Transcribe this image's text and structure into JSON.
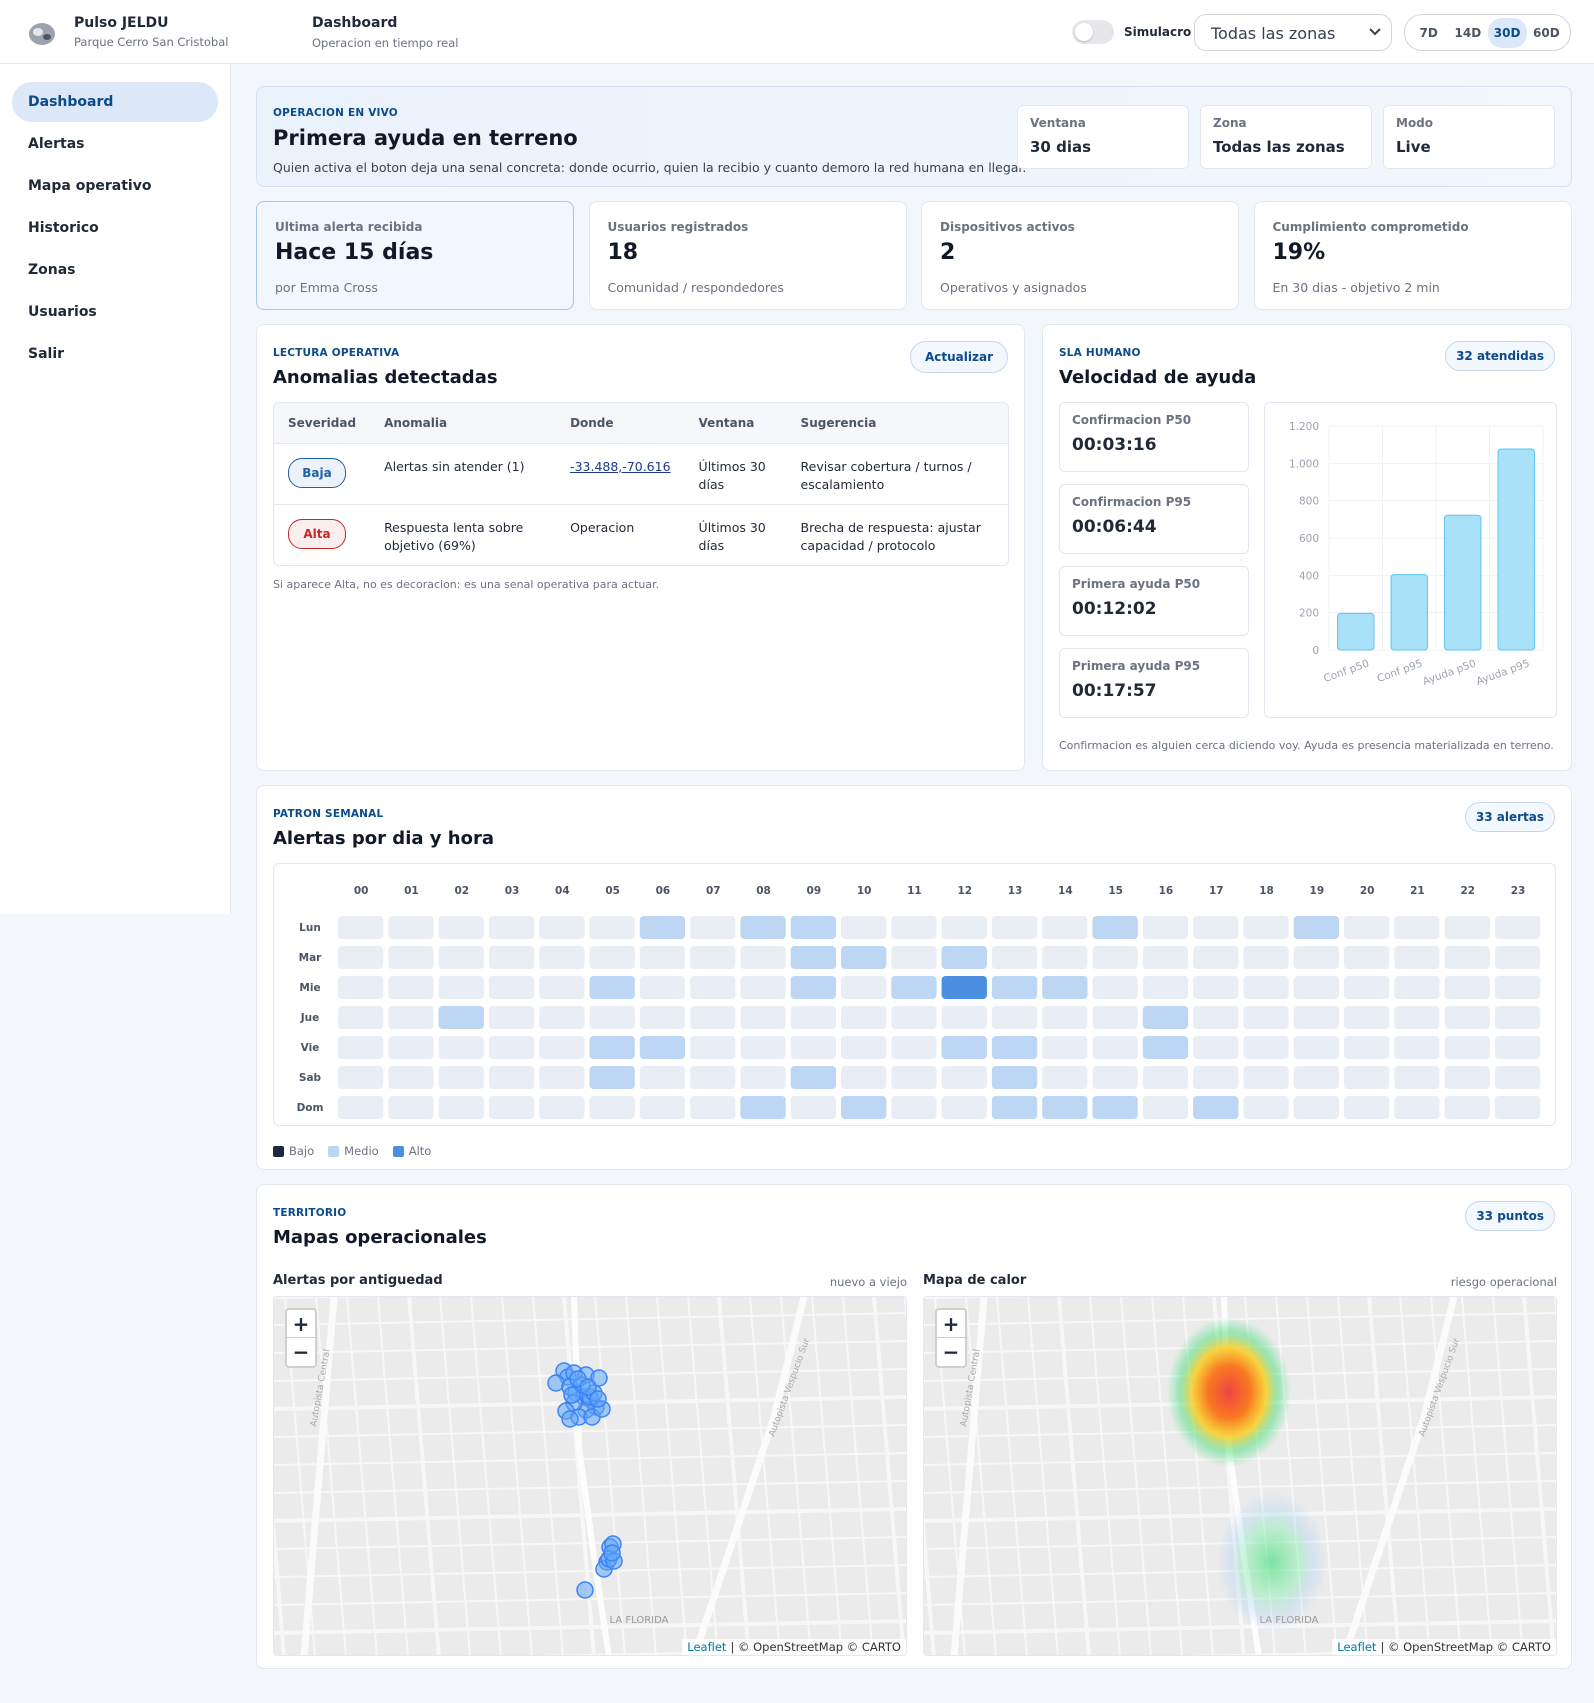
{
  "header": {
    "brand": "Pulso JELDU",
    "brand_sub": "Parque Cerro San Cristobal",
    "page": "Dashboard",
    "page_sub": "Operacion en tiempo real",
    "simulacro": "Simulacro",
    "zone": "Todas las zonas",
    "ranges": [
      "7D",
      "14D",
      "30D",
      "60D"
    ],
    "active_range": 2
  },
  "nav": {
    "items": [
      "Dashboard",
      "Alertas",
      "Mapa operativo",
      "Historico",
      "Zonas",
      "Usuarios",
      "Salir"
    ],
    "active": 0
  },
  "hero": {
    "eyebrow": "OPERACION EN VIVO",
    "title": "Primera ayuda en terreno",
    "text": "Quien activa el boton deja una senal concreta: donde ocurrio, quien la recibio y cuanto demoro la red humana en llegar.",
    "facts": [
      {
        "label": "Ventana",
        "value": "30 dias"
      },
      {
        "label": "Zona",
        "value": "Todas las zonas"
      },
      {
        "label": "Modo",
        "value": "Live"
      }
    ]
  },
  "kpis": [
    {
      "label": "Ultima alerta recibida",
      "value": "Hace 15 días",
      "note": "por Emma Cross"
    },
    {
      "label": "Usuarios registrados",
      "value": "18",
      "note": "Comunidad / respondedores"
    },
    {
      "label": "Dispositivos activos",
      "value": "2",
      "note": "Operativos y asignados"
    },
    {
      "label": "Cumplimiento comprometido",
      "value": "19%",
      "note": "En 30 dias - objetivo 2 min"
    }
  ],
  "anomalies": {
    "eyebrow": "LECTURA OPERATIVA",
    "title": "Anomalias detectadas",
    "button": "Actualizar",
    "columns": [
      "Severidad",
      "Anomalia",
      "Donde",
      "Ventana",
      "Sugerencia"
    ],
    "rows": [
      {
        "severity": "Baja",
        "color": "#1f5fa8",
        "anomaly": "Alertas sin atender (1)",
        "where": "-33.488,-70.616",
        "window": "Últimos 30 días",
        "suggestion": "Revisar cobertura / turnos / escalamiento"
      },
      {
        "severity": "Alta",
        "color": "#c62828",
        "anomaly": "Respuesta lenta sobre objetivo (69%)",
        "where": "Operacion",
        "window": "Últimos 30 días",
        "suggestion": "Brecha de respuesta: ajustar capacidad / protocolo"
      }
    ],
    "note": "Si aparece Alta, no es decoracion: es una senal operativa para actuar."
  },
  "sla": {
    "eyebrow": "SLA HUMANO",
    "title": "Velocidad de ayuda",
    "badge": "32 atendidas",
    "metrics": [
      {
        "label": "Confirmacion P50",
        "value": "00:03:16"
      },
      {
        "label": "Confirmacion P95",
        "value": "00:06:44"
      },
      {
        "label": "Primera ayuda P50",
        "value": "00:12:02"
      },
      {
        "label": "Primera ayuda P95",
        "value": "00:17:57"
      }
    ],
    "note": "Confirmacion es alguien cerca diciendo voy. Ayuda es presencia materializada en terreno."
  },
  "chart_data": {
    "type": "bar",
    "categories": [
      "Conf p50",
      "Conf p95",
      "Ayuda p50",
      "Ayuda p95"
    ],
    "values": [
      196,
      404,
      722,
      1077
    ],
    "color": "#a9e2f8",
    "ylim": [
      0,
      1200
    ],
    "yticks": [
      0,
      200,
      400,
      600,
      800,
      {
        "value": 1000,
        "label": "1.000"
      },
      {
        "value": 1200,
        "label": "1.200"
      }
    ],
    "grid": true
  },
  "heatmap": {
    "eyebrow": "PATRON SEMANAL",
    "title": "Alertas por dia y hora",
    "badge": "33 alertas",
    "hours": [
      "00",
      "01",
      "02",
      "03",
      "04",
      "05",
      "06",
      "07",
      "08",
      "09",
      "10",
      "11",
      "12",
      "13",
      "14",
      "15",
      "16",
      "17",
      "18",
      "19",
      "20",
      "21",
      "22",
      "23"
    ],
    "days": [
      "Lun",
      "Mar",
      "Mie",
      "Jue",
      "Vie",
      "Sab",
      "Dom"
    ],
    "values": [
      [
        0,
        0,
        0,
        0,
        0,
        0,
        1,
        0,
        1,
        1,
        0,
        0,
        0,
        0,
        0,
        1,
        0,
        0,
        0,
        1,
        0,
        0,
        0,
        0
      ],
      [
        0,
        0,
        0,
        0,
        0,
        0,
        0,
        0,
        0,
        1,
        1,
        0,
        1,
        0,
        0,
        0,
        0,
        0,
        0,
        0,
        0,
        0,
        0,
        0
      ],
      [
        0,
        0,
        0,
        0,
        0,
        1,
        0,
        0,
        0,
        1,
        0,
        1,
        4,
        1,
        1,
        0,
        0,
        0,
        0,
        0,
        0,
        0,
        0,
        0
      ],
      [
        0,
        0,
        1,
        0,
        0,
        0,
        0,
        0,
        0,
        0,
        0,
        0,
        0,
        0,
        0,
        0,
        1,
        0,
        0,
        0,
        0,
        0,
        0,
        0
      ],
      [
        0,
        0,
        0,
        0,
        0,
        1,
        1,
        0,
        0,
        0,
        0,
        0,
        1,
        1,
        0,
        0,
        1,
        0,
        0,
        0,
        0,
        0,
        0,
        0
      ],
      [
        0,
        0,
        0,
        0,
        0,
        1,
        0,
        0,
        0,
        1,
        0,
        0,
        0,
        1,
        0,
        0,
        0,
        0,
        0,
        0,
        0,
        0,
        0,
        0
      ],
      [
        0,
        0,
        0,
        0,
        0,
        0,
        0,
        0,
        1,
        0,
        1,
        0,
        0,
        1,
        1,
        1,
        0,
        1,
        0,
        0,
        0,
        0,
        0,
        0
      ]
    ],
    "empty_color": "#e9eef5",
    "legend": [
      {
        "name": "Bajo",
        "color": "#1e293b"
      },
      {
        "name": "Medio",
        "color": "#bcd6f4"
      },
      {
        "name": "Alto",
        "color": "#4a8fe0"
      }
    ]
  },
  "maps": {
    "eyebrow": "TERRITORIO",
    "title": "Mapas operacionales",
    "badge": "33 puntos",
    "panels": [
      {
        "title": "Alertas por antiguedad",
        "hint": "nuevo a viejo"
      },
      {
        "title": "Mapa de calor",
        "hint": "riesgo operacional"
      }
    ],
    "zoom": [
      "+",
      "−"
    ],
    "place": "LA FLORIDA",
    "streets": [
      "Autopista Central",
      "Autopista Vespucio Sur"
    ],
    "attribution_link": "Leaflet",
    "attribution": "| © OpenStreetMap © CARTO"
  }
}
